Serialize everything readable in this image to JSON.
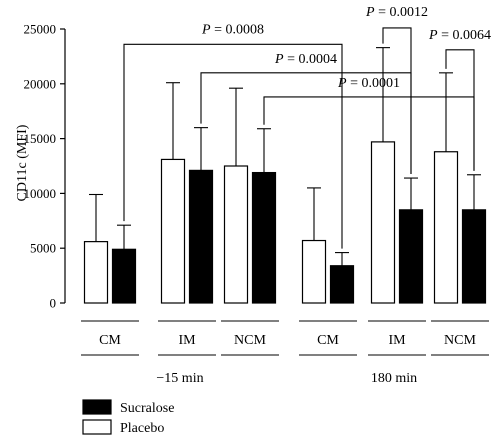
{
  "chart_data": {
    "type": "bar",
    "title": "",
    "xlabel": "",
    "ylabel": "CD11c (MFI)",
    "ylim": [
      0,
      25000
    ],
    "yticks": [
      0,
      5000,
      10000,
      15000,
      20000,
      25000
    ],
    "grid": false,
    "legend_position": "bottom-left",
    "groups": [
      {
        "label": "−15 min",
        "categories": [
          "CM",
          "IM",
          "NCM"
        ]
      },
      {
        "label": "180 min",
        "categories": [
          "CM",
          "IM",
          "NCM"
        ]
      }
    ],
    "categories": [
      "CM",
      "IM",
      "NCM",
      "CM",
      "IM",
      "NCM"
    ],
    "series": [
      {
        "name": "Placebo",
        "color": "#ffffff",
        "values": [
          5600,
          13100,
          12500,
          5700,
          14700,
          13800
        ],
        "error_upper": [
          9900,
          20100,
          19600,
          10500,
          23300,
          21000
        ]
      },
      {
        "name": "Sucralose",
        "color": "#000000",
        "values": [
          4900,
          12100,
          11900,
          3400,
          8500,
          8500
        ],
        "error_upper": [
          7100,
          16000,
          15900,
          4600,
          11400,
          11700
        ]
      }
    ],
    "annotations": [
      {
        "text": "P = 0.0008",
        "from": {
          "category": 0,
          "series": 1
        },
        "to": {
          "category": 3,
          "series": 1
        },
        "y": 23600,
        "label_y": 24600
      },
      {
        "text": "P = 0.0004",
        "from": {
          "category": 1,
          "series": 1
        },
        "to": {
          "category": 4,
          "series": 1
        },
        "y": 21000,
        "label_y": 21900
      },
      {
        "text": "P = 0.0001",
        "from": {
          "category": 2,
          "series": 1
        },
        "to": {
          "category": 5,
          "series": 1
        },
        "y": 18800,
        "label_y": 19700
      },
      {
        "text": "P = 0.0012",
        "from": {
          "category": 4,
          "series": 0
        },
        "to": {
          "category": 4,
          "series": 1
        },
        "y": 25100,
        "label_y": 26200
      },
      {
        "text": "P = 0.0064",
        "from": {
          "category": 5,
          "series": 0
        },
        "to": {
          "category": 5,
          "series": 1
        },
        "y": 23100,
        "label_y": 24100
      }
    ]
  }
}
